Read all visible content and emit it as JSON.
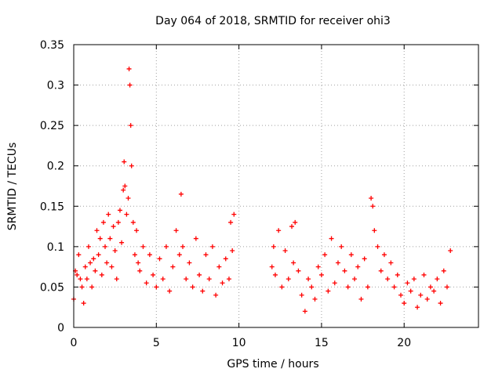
{
  "chart_data": {
    "type": "scatter",
    "title": "Day 064 of 2018, SRMTID for receiver ohi3",
    "xlabel": "GPS time / hours",
    "ylabel": "SRMTID / TECUs",
    "xlim": [
      0,
      24.5
    ],
    "ylim": [
      0,
      0.35
    ],
    "x_ticks": [
      0,
      5,
      10,
      15,
      20
    ],
    "y_ticks": [
      0,
      0.05,
      0.1,
      0.15,
      0.2,
      0.25,
      0.3,
      0.35
    ],
    "x_tick_labels": [
      "0",
      "5",
      "10",
      "15",
      "20"
    ],
    "y_tick_labels": [
      "0",
      "0.05",
      "0.1",
      "0.15",
      "0.2",
      "0.25",
      "0.3",
      "0.35"
    ],
    "grid": true,
    "marker": "+",
    "series": [
      {
        "name": "SRMTID",
        "color": "#ff0000",
        "x": [
          0.0,
          0.1,
          0.2,
          0.3,
          0.4,
          0.5,
          0.6,
          0.7,
          0.8,
          0.9,
          1.0,
          1.1,
          1.2,
          1.3,
          1.4,
          1.5,
          1.6,
          1.7,
          1.8,
          1.9,
          2.0,
          2.1,
          2.2,
          2.3,
          2.4,
          2.5,
          2.6,
          2.7,
          2.8,
          2.9,
          3.0,
          3.05,
          3.1,
          3.2,
          3.3,
          3.35,
          3.4,
          3.45,
          3.5,
          3.6,
          3.7,
          3.8,
          3.9,
          4.0,
          4.2,
          4.4,
          4.6,
          4.8,
          5.0,
          5.2,
          5.4,
          5.6,
          5.8,
          6.0,
          6.2,
          6.4,
          6.5,
          6.6,
          6.8,
          7.0,
          7.2,
          7.4,
          7.6,
          7.8,
          8.0,
          8.2,
          8.4,
          8.6,
          8.8,
          9.0,
          9.2,
          9.4,
          9.5,
          9.6,
          9.7,
          12.0,
          12.1,
          12.2,
          12.4,
          12.6,
          12.8,
          13.0,
          13.2,
          13.3,
          13.4,
          13.6,
          13.8,
          14.0,
          14.2,
          14.4,
          14.6,
          14.8,
          15.0,
          15.2,
          15.4,
          15.6,
          15.8,
          16.0,
          16.2,
          16.4,
          16.6,
          16.8,
          17.0,
          17.2,
          17.4,
          17.6,
          17.8,
          18.0,
          18.1,
          18.2,
          18.4,
          18.6,
          18.8,
          19.0,
          19.2,
          19.4,
          19.6,
          19.8,
          20.0,
          20.2,
          20.4,
          20.6,
          20.8,
          21.0,
          21.2,
          21.4,
          21.6,
          21.8,
          22.0,
          22.2,
          22.4,
          22.6,
          22.8
        ],
        "y": [
          0.035,
          0.07,
          0.065,
          0.09,
          0.06,
          0.05,
          0.03,
          0.075,
          0.06,
          0.1,
          0.08,
          0.05,
          0.085,
          0.07,
          0.12,
          0.09,
          0.11,
          0.065,
          0.13,
          0.1,
          0.08,
          0.14,
          0.11,
          0.075,
          0.125,
          0.095,
          0.06,
          0.13,
          0.145,
          0.105,
          0.17,
          0.205,
          0.175,
          0.14,
          0.16,
          0.32,
          0.3,
          0.25,
          0.2,
          0.13,
          0.09,
          0.12,
          0.08,
          0.07,
          0.1,
          0.055,
          0.09,
          0.065,
          0.05,
          0.085,
          0.06,
          0.1,
          0.045,
          0.075,
          0.12,
          0.09,
          0.165,
          0.1,
          0.06,
          0.08,
          0.05,
          0.11,
          0.065,
          0.045,
          0.09,
          0.06,
          0.1,
          0.04,
          0.075,
          0.055,
          0.085,
          0.06,
          0.13,
          0.095,
          0.14,
          0.075,
          0.1,
          0.065,
          0.12,
          0.05,
          0.095,
          0.06,
          0.125,
          0.08,
          0.13,
          0.07,
          0.04,
          0.02,
          0.06,
          0.05,
          0.035,
          0.075,
          0.065,
          0.09,
          0.045,
          0.11,
          0.055,
          0.08,
          0.1,
          0.07,
          0.05,
          0.09,
          0.06,
          0.075,
          0.035,
          0.085,
          0.05,
          0.16,
          0.15,
          0.12,
          0.1,
          0.07,
          0.09,
          0.06,
          0.08,
          0.05,
          0.065,
          0.04,
          0.03,
          0.055,
          0.045,
          0.06,
          0.025,
          0.04,
          0.065,
          0.035,
          0.05,
          0.045,
          0.06,
          0.03,
          0.07,
          0.05,
          0.095
        ]
      }
    ]
  }
}
